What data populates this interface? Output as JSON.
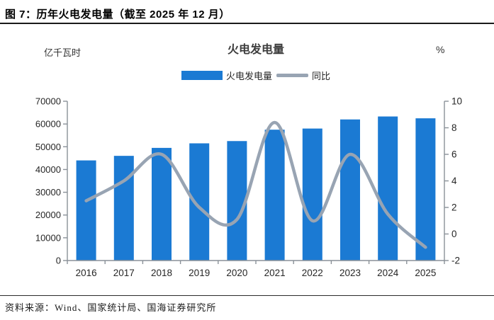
{
  "figure": {
    "title": "图 7：历年火电发电量（截至 2025 年 12 月）",
    "source": "资料来源：Wind、国家统计局、国海证券研究所"
  },
  "chart_data": {
    "type": "bar",
    "title": "火电发电量",
    "categories": [
      "2016",
      "2017",
      "2018",
      "2019",
      "2020",
      "2021",
      "2022",
      "2023",
      "2024",
      "2025"
    ],
    "series": [
      {
        "name": "火电发电量",
        "type": "bar",
        "axis": "left",
        "color": "#1b7ad3",
        "values": [
          44000,
          46000,
          49500,
          51500,
          52500,
          57500,
          58000,
          62000,
          63300,
          62500
        ]
      },
      {
        "name": "同比",
        "type": "line",
        "axis": "right",
        "color": "#98a4b3",
        "values": [
          2.5,
          4.0,
          6.0,
          2.0,
          1.1,
          8.4,
          1.0,
          6.0,
          1.5,
          -1.0
        ]
      }
    ],
    "left_axis": {
      "label": "亿千瓦时",
      "min": 0,
      "max": 70000,
      "step": 10000
    },
    "right_axis": {
      "label": "%",
      "min": -2,
      "max": 10,
      "step": 2
    },
    "legend_position": "top-center",
    "grid": false
  },
  "colors": {
    "bar_blue": "#1b7ad3",
    "line_gray": "#98a4b3",
    "axis_gray": "#8a9198",
    "tick_text": "#262626",
    "rule_dark": "#1a1a1a"
  }
}
